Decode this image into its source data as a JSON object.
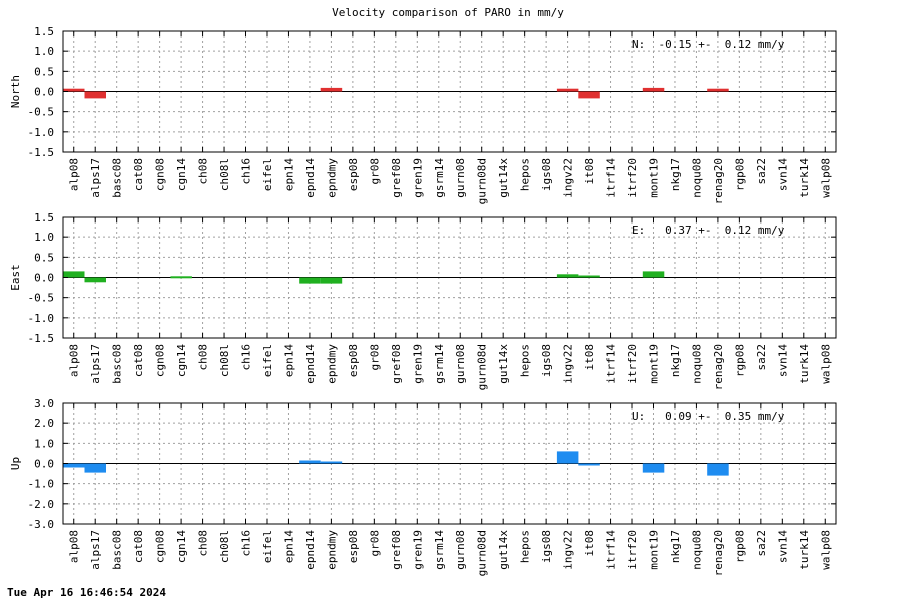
{
  "title": "Velocity comparison of PARO in mm/y",
  "footer": "Tue Apr 16 16:46:54 2024",
  "chart_data": {
    "type": "bar",
    "categories": [
      "alp08",
      "alps17",
      "basc08",
      "cat08",
      "cgn08",
      "cgn14",
      "ch08",
      "ch08l",
      "ch16",
      "eifel",
      "epn14",
      "epnd14",
      "epndmy",
      "esp08",
      "gr08",
      "gref08",
      "gren19",
      "gsrm14",
      "gurn08",
      "gurn08d",
      "gut14x",
      "hepos",
      "igs08",
      "ingv22",
      "it08",
      "itrf14",
      "itrf20",
      "mont19",
      "nkg17",
      "noqu08",
      "renag20",
      "rgp08",
      "sa22",
      "svn14",
      "turk14",
      "walp08"
    ],
    "panels": [
      {
        "ylabel": "North",
        "ylim": [
          -1.5,
          1.5
        ],
        "yticks": [
          "1.5",
          "1.0",
          "0.5",
          "0.0",
          "-0.5",
          "-1.0",
          "-1.5"
        ],
        "ytick_values": [
          1.5,
          1.0,
          0.5,
          0.0,
          -0.5,
          -1.0,
          -1.5
        ],
        "color": "#e03030",
        "annotation": "N:  -0.15 +-  0.12 mm/y",
        "values": [
          0.07,
          -0.17,
          0,
          0,
          0,
          0,
          0,
          0,
          0,
          0,
          0,
          0,
          0.09,
          0,
          0,
          0,
          0,
          0,
          0,
          0,
          0,
          0,
          0,
          0.07,
          -0.17,
          0,
          0,
          0.09,
          0,
          0,
          0.07,
          0,
          0,
          0,
          0,
          0
        ]
      },
      {
        "ylabel": "East",
        "ylim": [
          -1.5,
          1.5
        ],
        "yticks": [
          "1.5",
          "1.0",
          "0.5",
          "0.0",
          "-0.5",
          "-1.0",
          "-1.5"
        ],
        "ytick_values": [
          1.5,
          1.0,
          0.5,
          0.0,
          -0.5,
          -1.0,
          -1.5
        ],
        "color": "#20b020",
        "annotation": "E:   0.37 +-  0.12 mm/y",
        "values": [
          0.15,
          -0.12,
          0,
          0,
          0,
          0.03,
          0,
          0,
          0,
          0,
          0,
          -0.15,
          -0.15,
          0,
          0,
          0,
          0,
          0,
          0,
          0,
          0,
          0,
          0,
          0.08,
          0.05,
          0,
          0,
          0.15,
          0,
          0,
          0,
          0,
          0,
          0,
          0,
          0
        ]
      },
      {
        "ylabel": "Up",
        "ylim": [
          -3.0,
          3.0
        ],
        "yticks": [
          "3.0",
          "2.0",
          "1.0",
          "0.0",
          "-1.0",
          "-2.0",
          "-3.0"
        ],
        "ytick_values": [
          3.0,
          2.0,
          1.0,
          0.0,
          -1.0,
          -2.0,
          -3.0
        ],
        "color": "#1e8cf0",
        "annotation": "U:   0.09 +-  0.35 mm/y",
        "values": [
          -0.2,
          -0.45,
          0,
          0,
          0,
          0,
          0,
          0,
          0,
          0,
          0,
          0.15,
          0.1,
          0,
          0,
          0,
          0,
          0,
          0,
          0,
          0,
          0,
          0,
          0.6,
          -0.1,
          0,
          0,
          -0.45,
          0,
          0,
          -0.6,
          0,
          0,
          0,
          0,
          0
        ]
      }
    ],
    "grid": true
  }
}
